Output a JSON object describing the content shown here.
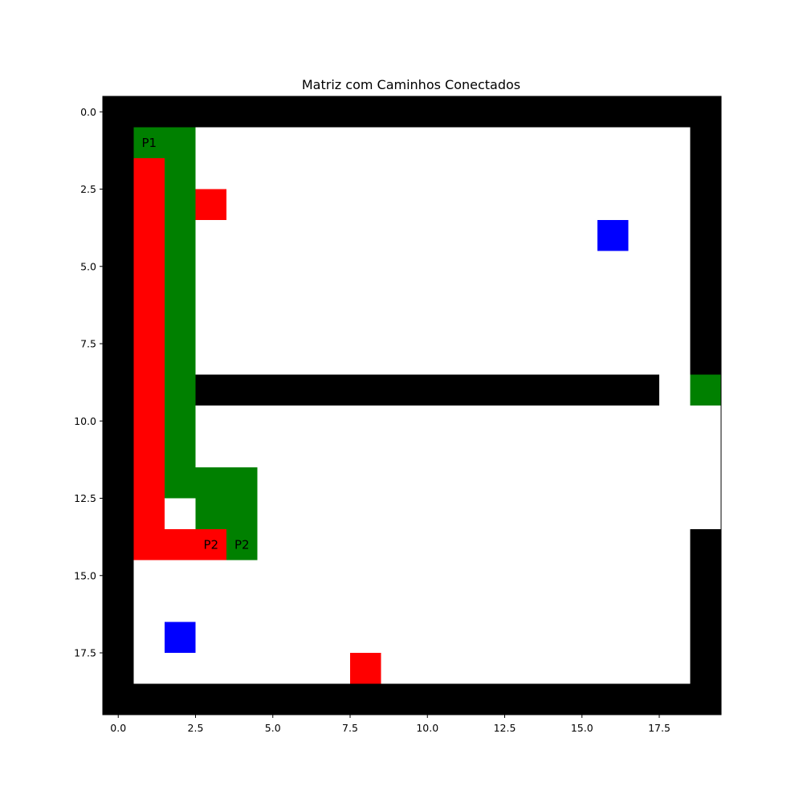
{
  "chart_data": {
    "type": "heatmap",
    "title": "Matriz com Caminhos Conectados",
    "xlabel": "",
    "ylabel": "",
    "grid": false,
    "shape": [
      20,
      20
    ],
    "xlim": [
      -0.5,
      19.5
    ],
    "ylim": [
      19.5,
      -0.5
    ],
    "x_ticks": [
      0.0,
      2.5,
      5.0,
      7.5,
      10.0,
      12.5,
      15.0,
      17.5
    ],
    "x_tick_labels": [
      "0.0",
      "2.5",
      "5.0",
      "7.5",
      "10.0",
      "12.5",
      "15.0",
      "17.5"
    ],
    "y_ticks": [
      0.0,
      2.5,
      5.0,
      7.5,
      10.0,
      12.5,
      15.0,
      17.5
    ],
    "y_tick_labels": [
      "0.0",
      "2.5",
      "5.0",
      "7.5",
      "10.0",
      "12.5",
      "15.0",
      "17.5"
    ],
    "colors": {
      "W": "#000000",
      ".": "#ffffff",
      "R": "#ff0000",
      "G": "#008000",
      "B": "#0000ff"
    },
    "grid_rows": [
      "WWWWWWWWWWWWWWWWWWWW",
      "WGG................W",
      "WRG................W",
      "WRGR...............W",
      "WRG.............B..W",
      "WRG................W",
      "WRG................W",
      "WRG................W",
      "WRG................W",
      "WRGWWWWWWWWWWWWWWW.G",
      "WRG.................",
      "WRG.................",
      "WRGGG...............",
      "WR.GG...............",
      "WRRRG..............W",
      "W..................W",
      "W..................W",
      "W.B................W",
      "W.......R..........W",
      "WWWWWWWWWWWWWWWWWWWW"
    ],
    "annotations": [
      {
        "text": "P1",
        "x": 1,
        "y": 1
      },
      {
        "text": "P2",
        "x": 3,
        "y": 14
      },
      {
        "text": "P2",
        "x": 4,
        "y": 14
      }
    ]
  }
}
